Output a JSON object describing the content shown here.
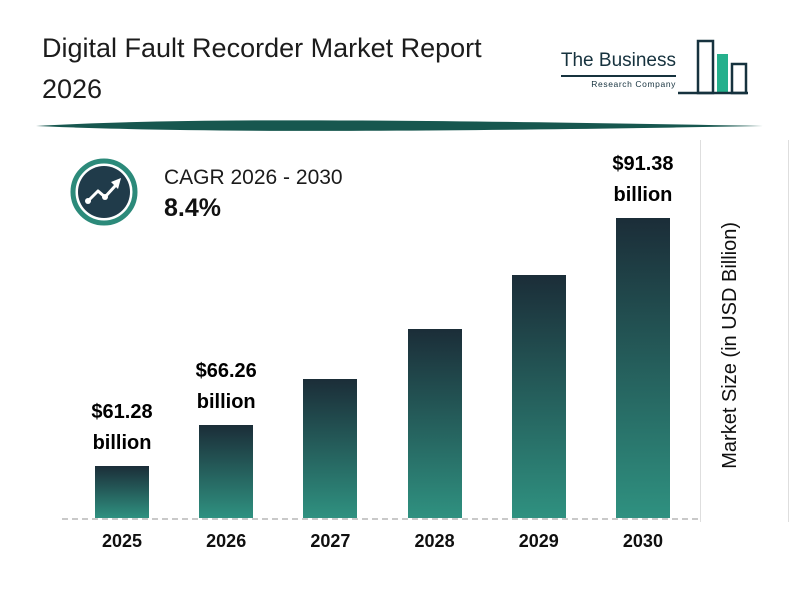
{
  "header": {
    "title": {
      "line1": "Digital Fault Recorder Market Report",
      "line2": "2026"
    },
    "logo": {
      "name": "The Business",
      "subtitle": "Research Company"
    }
  },
  "cagr": {
    "label": "CAGR 2026 - 2030",
    "value": "8.4%"
  },
  "chart_data": {
    "type": "bar",
    "title": "Digital Fault Recorder Market Report 2026",
    "ylabel": "Market Size (in USD Billion)",
    "categories": [
      "2025",
      "2026",
      "2027",
      "2028",
      "2029",
      "2030"
    ],
    "values": [
      61.28,
      66.26,
      71.83,
      77.86,
      84.4,
      91.38
    ],
    "labels": [
      {
        "line1": "$61.28",
        "line2": "billion"
      },
      {
        "line1": "$66.26",
        "line2": "billion"
      },
      null,
      null,
      null,
      {
        "line1": "$91.38",
        "line2": "billion"
      }
    ],
    "ylim": [
      55,
      95
    ],
    "grid": false,
    "legend": "none",
    "cagr_2026_2030": "8.4%",
    "bar_gradient": [
      "#1b2d38",
      "#2f9180"
    ]
  },
  "colors": {
    "accent_teal": "#2f9180",
    "bar_top": "#1b2d38",
    "divider": "#17574f",
    "circle_ring": "#2c8a7a",
    "circle_fill": "#203b4a",
    "dash_color": "#c9c9c9",
    "logo_ink": "#16323e"
  }
}
